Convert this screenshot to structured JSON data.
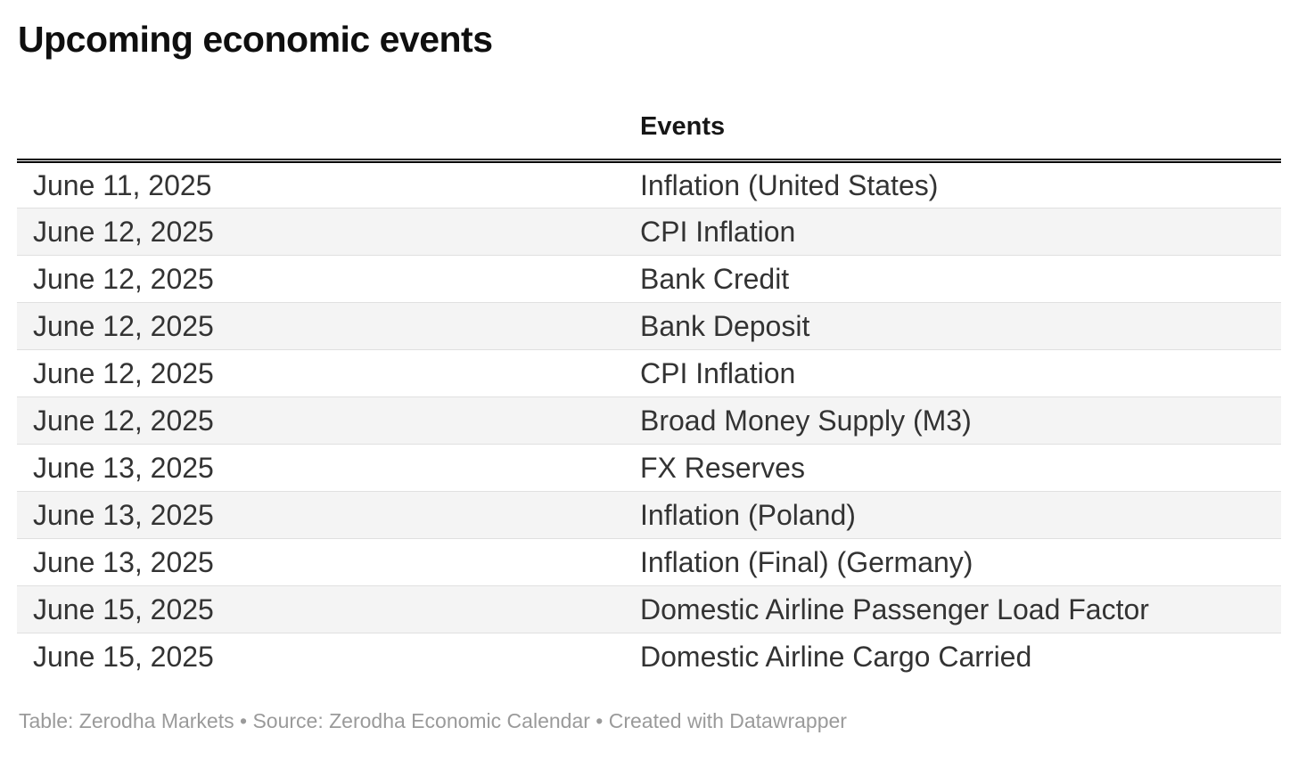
{
  "chart_data": {
    "type": "table",
    "title": "Upcoming economic events",
    "columns": [
      "",
      "Events"
    ],
    "rows": [
      [
        "June 11, 2025",
        "Inflation (United States)"
      ],
      [
        "June 12, 2025",
        "CPI Inflation"
      ],
      [
        "June 12, 2025",
        "Bank Credit"
      ],
      [
        "June 12, 2025",
        "Bank Deposit"
      ],
      [
        "June 12, 2025",
        "CPI Inflation"
      ],
      [
        "June 12, 2025",
        "Broad Money Supply (M3)"
      ],
      [
        "June 13, 2025",
        "FX Reserves"
      ],
      [
        "June 13, 2025",
        "Inflation (Poland)"
      ],
      [
        "June 13, 2025",
        "Inflation (Final) (Germany)"
      ],
      [
        "June 15, 2025",
        "Domestic Airline Passenger Load Factor"
      ],
      [
        "June 15, 2025",
        "Domestic Airline Cargo Carried"
      ]
    ],
    "footer": "Table: Zerodha Markets • Source: Zerodha Economic Calendar • Created with Datawrapper",
    "layout_hints": {
      "striped_rows": true,
      "stripe_color": "#f4f4f4",
      "header_rule": "double black line",
      "grid": "horizontal separators only"
    }
  },
  "footer": {
    "table_label": "Table: ",
    "table_value": "Zerodha Markets",
    "separator1": " • ",
    "source_label": "Source: ",
    "source_value": "Zerodha Economic Calendar",
    "separator2": " • ",
    "created_label": "Created with ",
    "created_value": "Datawrapper"
  },
  "colors": {
    "title_text": "#0f0f0f",
    "body_text": "#333333",
    "stripe": "#f4f4f4",
    "row_separator": "#e0e0e0",
    "header_rule": "#000000",
    "footer_text": "#9a9a9a",
    "background": "#ffffff"
  }
}
